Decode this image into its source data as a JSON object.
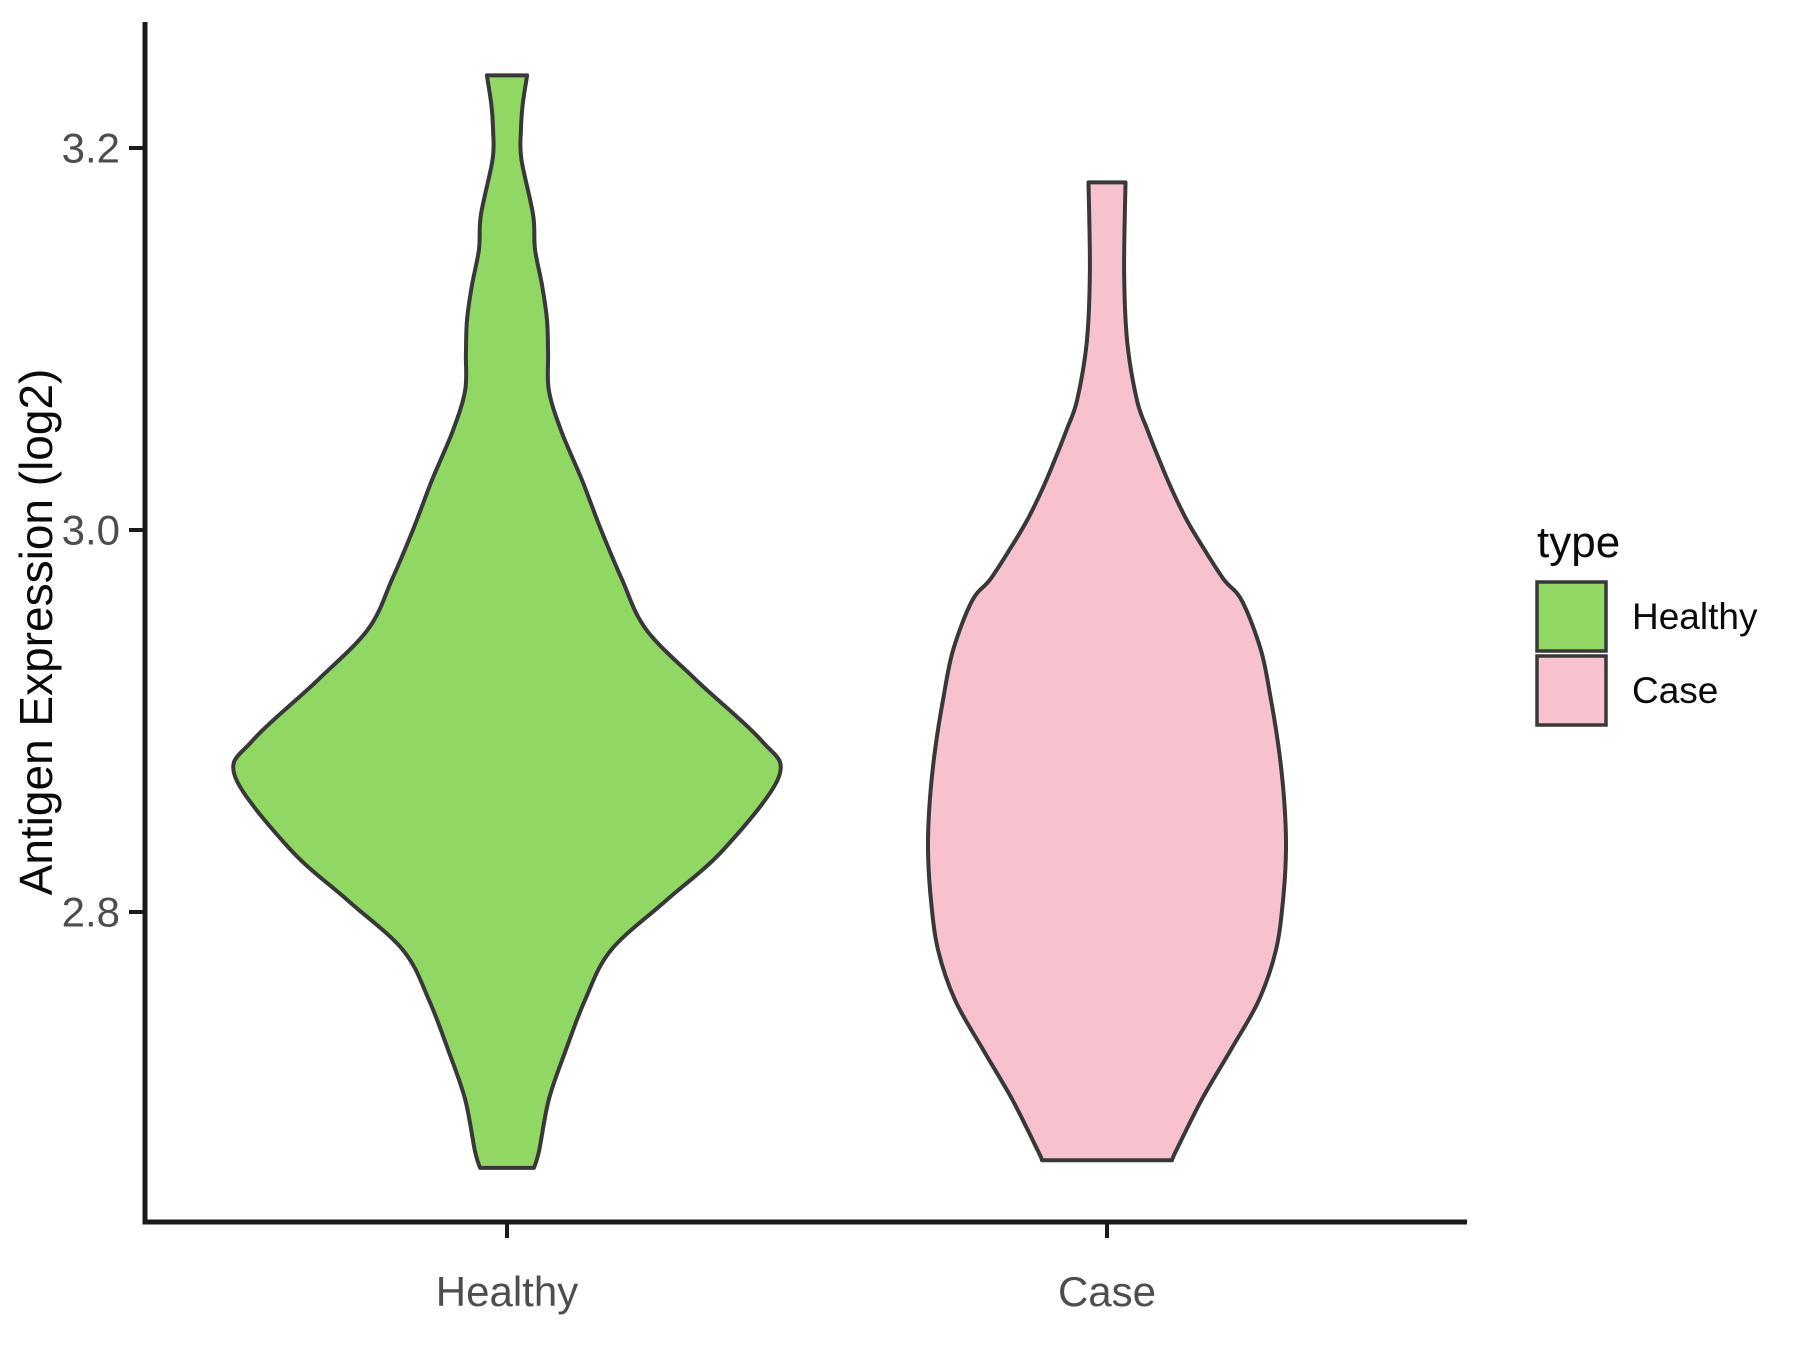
{
  "chart_data": {
    "type": "violin",
    "orientation": "vertical",
    "title": "",
    "xlabel": "",
    "ylabel": "Antigen Expression (log2)",
    "categories": [
      "Healthy",
      "Case"
    ],
    "yticks": [
      {
        "value": 3.2,
        "label": "3.2"
      },
      {
        "value": 3.0,
        "label": "3.0"
      },
      {
        "value": 2.8,
        "label": "2.8"
      }
    ],
    "ylim_visible": [
      2.63,
      3.27
    ],
    "grid": false,
    "theme": "classic-white-no-grid",
    "legend": {
      "title": "type",
      "position": "right",
      "entries": [
        {
          "label": "Healthy",
          "color": "#90D863"
        },
        {
          "label": "Case",
          "color": "#F7C2CD"
        }
      ]
    },
    "colors": {
      "outline": "#383838",
      "axis": "#1a1a1a",
      "tick_text": "#4d4d4d",
      "title_text": "#0a0a0a"
    },
    "series": [
      {
        "name": "Healthy",
        "color": "#90D863",
        "outline": "#383838",
        "range": [
          2.666,
          3.238
        ],
        "peak_value": 2.87,
        "profile_note": "pairs of [expression_value, relative_half_width] where 1.0 = widest violin width",
        "profile": [
          [
            3.238,
            0.074
          ],
          [
            3.222,
            0.057
          ],
          [
            3.209,
            0.051
          ],
          [
            3.194,
            0.053
          ],
          [
            3.165,
            0.096
          ],
          [
            3.147,
            0.103
          ],
          [
            3.128,
            0.129
          ],
          [
            3.11,
            0.147
          ],
          [
            3.092,
            0.151
          ],
          [
            3.073,
            0.154
          ],
          [
            3.052,
            0.199
          ],
          [
            3.026,
            0.276
          ],
          [
            3.0,
            0.346
          ],
          [
            2.974,
            0.423
          ],
          [
            2.948,
            0.511
          ],
          [
            2.921,
            0.699
          ],
          [
            2.89,
            0.934
          ],
          [
            2.871,
            1.0
          ],
          [
            2.833,
            0.798
          ],
          [
            2.806,
            0.585
          ],
          [
            2.78,
            0.382
          ],
          [
            2.754,
            0.287
          ],
          [
            2.728,
            0.217
          ],
          [
            2.702,
            0.154
          ],
          [
            2.675,
            0.118
          ],
          [
            2.666,
            0.099
          ]
        ]
      },
      {
        "name": "Case",
        "color": "#F7C2CD",
        "outline": "#383838",
        "range": [
          2.67,
          3.182
        ],
        "peak_value": 2.833,
        "profile_note": "pairs of [expression_value, relative_half_width] where 1.0 = widest violin width",
        "profile": [
          [
            3.182,
            0.068
          ],
          [
            3.136,
            0.063
          ],
          [
            3.099,
            0.074
          ],
          [
            3.068,
            0.11
          ],
          [
            3.053,
            0.147
          ],
          [
            3.037,
            0.191
          ],
          [
            3.021,
            0.239
          ],
          [
            3.005,
            0.294
          ],
          [
            2.99,
            0.357
          ],
          [
            2.974,
            0.43
          ],
          [
            2.963,
            0.496
          ],
          [
            2.937,
            0.566
          ],
          [
            2.911,
            0.603
          ],
          [
            2.885,
            0.632
          ],
          [
            2.859,
            0.651
          ],
          [
            2.833,
            0.658
          ],
          [
            2.806,
            0.647
          ],
          [
            2.78,
            0.621
          ],
          [
            2.754,
            0.559
          ],
          [
            2.728,
            0.456
          ],
          [
            2.702,
            0.349
          ],
          [
            2.675,
            0.254
          ],
          [
            2.67,
            0.239
          ]
        ]
      }
    ]
  }
}
